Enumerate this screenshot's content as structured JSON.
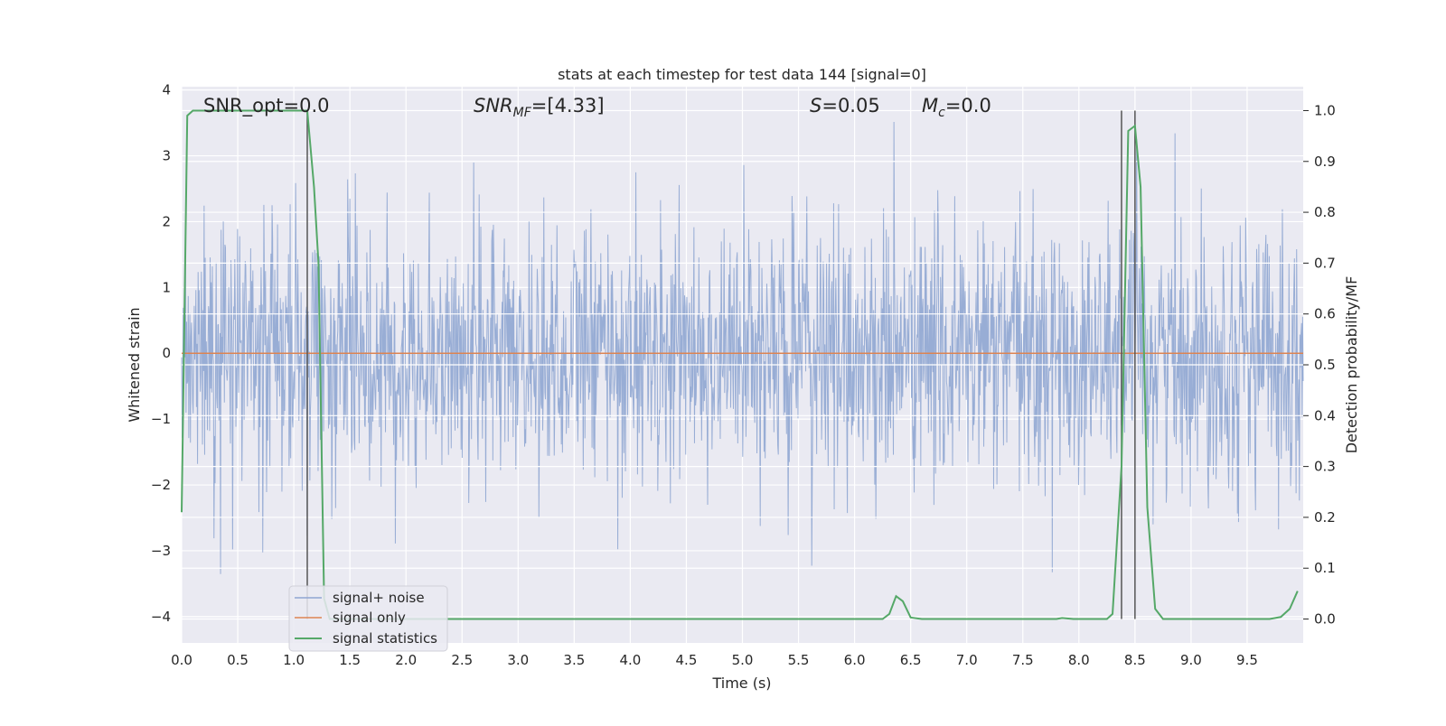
{
  "chart_data": {
    "type": "line",
    "title": "stats at each timestep for test data 144 [signal=0]",
    "xlabel": "Time (s)",
    "ylabel": "Whitened strain",
    "y2label": "Detection probability/MF",
    "xlim": [
      0.0,
      10.0
    ],
    "ylim": [
      -4.4,
      4.05
    ],
    "y2lim": [
      -0.047,
      1.047
    ],
    "xticks": [
      "0.0",
      "0.5",
      "1.0",
      "1.5",
      "2.0",
      "2.5",
      "3.0",
      "3.5",
      "4.0",
      "4.5",
      "5.0",
      "5.5",
      "6.0",
      "6.5",
      "7.0",
      "7.5",
      "8.0",
      "8.5",
      "9.0",
      "9.5"
    ],
    "yticks": [
      "4",
      "3",
      "2",
      "1",
      "0",
      "−1",
      "−2",
      "−3",
      "−4"
    ],
    "y2ticks": [
      "1.0",
      "0.9",
      "0.8",
      "0.7",
      "0.6",
      "0.5",
      "0.4",
      "0.3",
      "0.2",
      "0.1",
      "0.0"
    ],
    "annotations": {
      "snr_opt": "SNR_opt=0.0",
      "snr_mf_label": "SNR",
      "snr_mf_sub": "MF",
      "snr_mf_value": "=[4.33]",
      "s_label": "S",
      "s_value": "=0.05",
      "mc_label": "M",
      "mc_sub": "c",
      "mc_value": "=0.0"
    },
    "vlines_x": [
      1.12,
      8.38,
      8.5
    ],
    "legend": {
      "position": "lower-left",
      "entries": [
        "signal+ noise",
        "signal only",
        "signal statistics"
      ]
    },
    "series": [
      {
        "name": "signal+ noise",
        "description": "whitened strain noise, approx. normal with sigma 1",
        "amplitude_sigma": 1.0,
        "samples": 2048,
        "color": "#8fa6d2"
      },
      {
        "name": "signal only",
        "description": "zero signal",
        "value": 0,
        "color": "#dd8452"
      },
      {
        "name": "signal statistics",
        "axis": "right",
        "color": "#55a868",
        "points": [
          [
            0.0,
            0.21
          ],
          [
            0.05,
            0.99
          ],
          [
            0.1,
            1.0
          ],
          [
            0.2,
            1.0
          ],
          [
            0.5,
            1.0
          ],
          [
            0.8,
            1.0
          ],
          [
            1.12,
            1.0
          ],
          [
            1.18,
            0.85
          ],
          [
            1.22,
            0.7
          ],
          [
            1.27,
            0.04
          ],
          [
            1.32,
            0.0
          ],
          [
            2.0,
            0.0
          ],
          [
            4.0,
            0.0
          ],
          [
            6.0,
            0.0
          ],
          [
            6.25,
            0.0
          ],
          [
            6.31,
            0.01
          ],
          [
            6.37,
            0.045
          ],
          [
            6.43,
            0.035
          ],
          [
            6.5,
            0.003
          ],
          [
            6.6,
            0.0
          ],
          [
            7.5,
            0.0
          ],
          [
            7.8,
            0.0
          ],
          [
            7.85,
            0.002
          ],
          [
            7.95,
            0.0
          ],
          [
            8.25,
            0.0
          ],
          [
            8.3,
            0.01
          ],
          [
            8.38,
            0.3
          ],
          [
            8.44,
            0.96
          ],
          [
            8.5,
            0.97
          ],
          [
            8.55,
            0.85
          ],
          [
            8.61,
            0.22
          ],
          [
            8.68,
            0.02
          ],
          [
            8.75,
            0.0
          ],
          [
            9.0,
            0.0
          ],
          [
            9.7,
            0.0
          ],
          [
            9.8,
            0.004
          ],
          [
            9.88,
            0.02
          ],
          [
            9.95,
            0.055
          ]
        ]
      }
    ]
  }
}
